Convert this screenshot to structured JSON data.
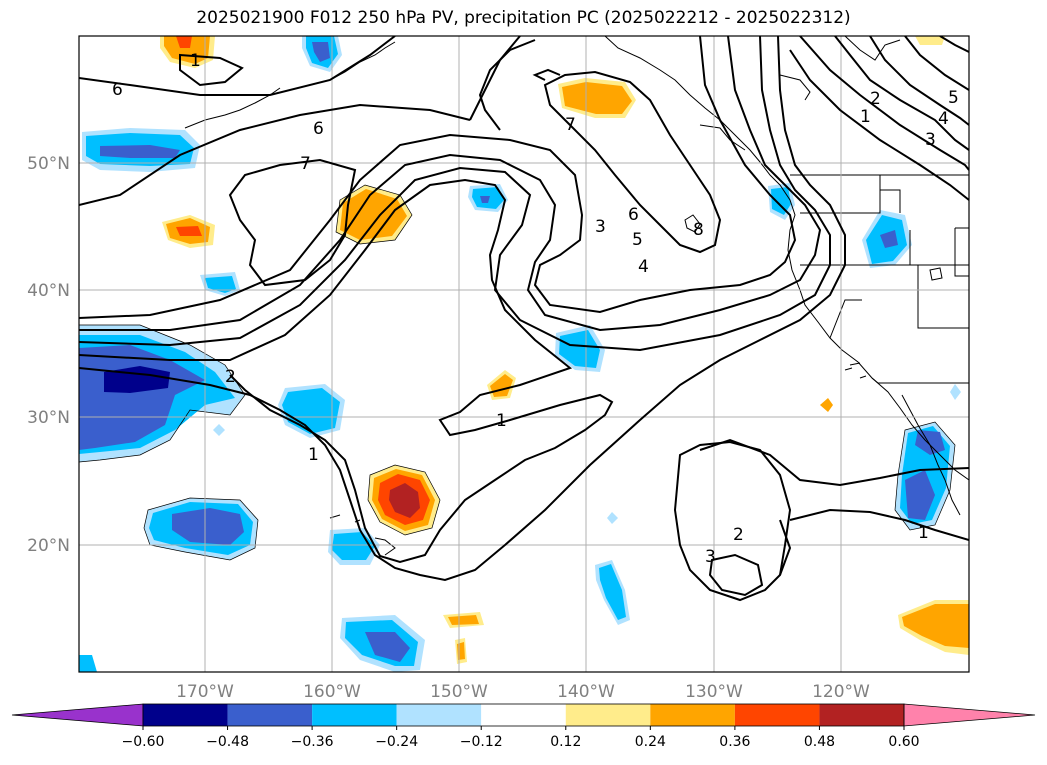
{
  "title": "2025021900 F012 250 hPa PV, precipitation PC (2025022212 - 2025022312)",
  "map": {
    "lon_ticks": [
      "170°W",
      "160°W",
      "150°W",
      "140°W",
      "130°W",
      "120°W"
    ],
    "lat_ticks": [
      "50°N",
      "40°N",
      "30°N",
      "20°N"
    ],
    "contour_labels": [
      "6",
      "1",
      "6",
      "7",
      "7",
      "2",
      "1",
      "1",
      "3",
      "6",
      "5",
      "4",
      "8",
      "2",
      "1",
      "3",
      "4",
      "5",
      "2",
      "3",
      "1"
    ]
  },
  "colorbar": {
    "ticks": [
      "−0.60",
      "−0.48",
      "−0.36",
      "−0.24",
      "−0.12",
      "0.12",
      "0.24",
      "0.36",
      "0.48",
      "0.60"
    ],
    "colors": [
      "#9932cc",
      "#00008b",
      "#3a5fcd",
      "#00bfff",
      "#b0e2ff",
      "#ffffff",
      "#ffec8b",
      "#ffa500",
      "#ff4500",
      "#b22222",
      "#ff82ab"
    ]
  }
}
